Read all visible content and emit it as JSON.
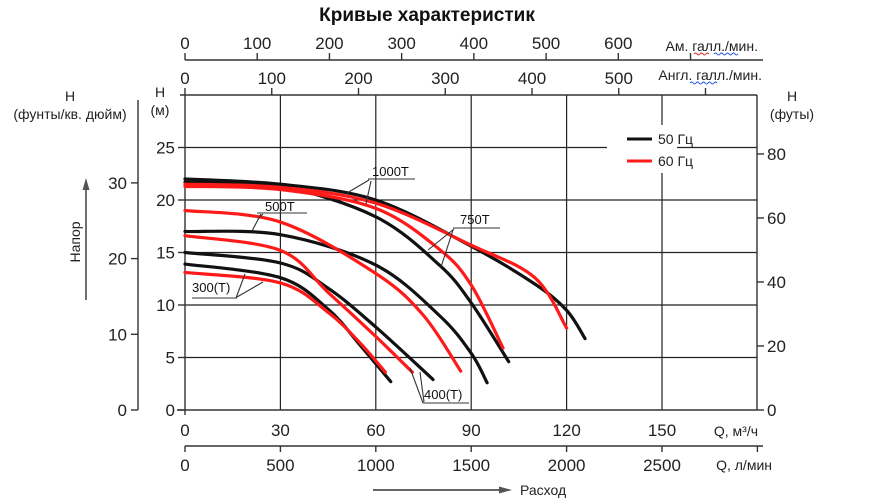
{
  "chart_data": {
    "type": "line",
    "title": "Кривые характеристик",
    "x_axes": {
      "primary": {
        "label": "Q, м³/ч",
        "ticks": [
          0,
          30,
          60,
          90,
          120,
          150
        ],
        "range": [
          0,
          180
        ]
      },
      "lpm": {
        "label": "Q, л/мин",
        "ticks": [
          0,
          500,
          1000,
          1500,
          2000,
          2500
        ]
      },
      "us_gpm": {
        "label": "Ам. галл./мин.",
        "ticks": [
          0,
          100,
          200,
          300,
          400,
          500,
          600
        ]
      },
      "uk_gpm": {
        "label": "Англ. галл./мин.",
        "ticks": [
          0,
          100,
          200,
          300,
          400,
          500
        ]
      },
      "flow_label": "Расход"
    },
    "y_axes": {
      "meters": {
        "label_top": "H",
        "label_bottom": "(м)",
        "ticks": [
          0,
          5,
          10,
          15,
          20,
          25
        ],
        "range": [
          0,
          30
        ]
      },
      "psi": {
        "label_top": "H",
        "label_bottom": "(фунты/кв. дюйм)",
        "ticks": [
          0,
          10,
          20,
          30
        ]
      },
      "feet": {
        "label_top": "H",
        "label_bottom": "(футы)",
        "ticks": [
          0,
          20,
          40,
          60,
          80
        ]
      },
      "head_label": "Напор"
    },
    "grid": true,
    "legend": {
      "placement": "top-right",
      "entries": [
        {
          "label": "50 Гц",
          "color": "#111111"
        },
        {
          "label": "60 Гц",
          "color": "#ff1a1a"
        }
      ]
    },
    "series": [
      {
        "model": "300(T)",
        "freq": "50 Гц",
        "color": "#111111",
        "points": [
          [
            0,
            13.9
          ],
          [
            30,
            12.6
          ],
          [
            45,
            9.6
          ],
          [
            55,
            6.2
          ],
          [
            64.7,
            2.7
          ]
        ]
      },
      {
        "model": "300(T)",
        "freq": "60 Гц",
        "color": "#ff1a1a",
        "points": [
          [
            0,
            13.1
          ],
          [
            30,
            12.1
          ],
          [
            45,
            9.3
          ],
          [
            55,
            6.4
          ],
          [
            63,
            3.6
          ]
        ]
      },
      {
        "model": "400(T)",
        "freq": "50 Гц",
        "color": "#111111",
        "points": [
          [
            0,
            15.0
          ],
          [
            30,
            14.0
          ],
          [
            45,
            11.6
          ],
          [
            60,
            7.9
          ],
          [
            78,
            2.9
          ]
        ]
      },
      {
        "model": "400(T)",
        "freq": "60 Гц",
        "color": "#ff1a1a",
        "points": [
          [
            0,
            16.6
          ],
          [
            30,
            15.2
          ],
          [
            45,
            11.2
          ],
          [
            60,
            7.0
          ],
          [
            71.5,
            3.6
          ]
        ]
      },
      {
        "model": "500T",
        "freq": "50 Гц",
        "color": "#111111",
        "points": [
          [
            0,
            17.0
          ],
          [
            30,
            16.7
          ],
          [
            60,
            13.8
          ],
          [
            80,
            9.0
          ],
          [
            90,
            5.4
          ],
          [
            95,
            2.6
          ]
        ]
      },
      {
        "model": "500T",
        "freq": "60 Гц",
        "color": "#ff1a1a",
        "points": [
          [
            0,
            19.0
          ],
          [
            30,
            17.9
          ],
          [
            60,
            13.0
          ],
          [
            75,
            9.0
          ],
          [
            86.7,
            3.7
          ]
        ]
      },
      {
        "model": "750T",
        "freq": "50 Гц",
        "color": "#111111",
        "points": [
          [
            0,
            21.7
          ],
          [
            30,
            21.3
          ],
          [
            60,
            18.4
          ],
          [
            80,
            13.8
          ],
          [
            90,
            10.2
          ],
          [
            101.8,
            4.6
          ]
        ]
      },
      {
        "model": "750T",
        "freq": "60 Гц",
        "color": "#ff1a1a",
        "points": [
          [
            0,
            21.3
          ],
          [
            30,
            21.0
          ],
          [
            60,
            19.2
          ],
          [
            80,
            15.3
          ],
          [
            90,
            11.9
          ],
          [
            100,
            5.9
          ]
        ]
      },
      {
        "model": "1000T",
        "freq": "50 Гц",
        "color": "#111111",
        "points": [
          [
            0,
            22.0
          ],
          [
            30,
            21.5
          ],
          [
            60,
            20.0
          ],
          [
            90,
            15.6
          ],
          [
            110,
            12.0
          ],
          [
            120,
            9.5
          ],
          [
            125.8,
            6.8
          ]
        ]
      },
      {
        "model": "1000T",
        "freq": "60 Гц",
        "color": "#ff1a1a",
        "points": [
          [
            0,
            21.5
          ],
          [
            30,
            21.2
          ],
          [
            60,
            19.7
          ],
          [
            90,
            15.7
          ],
          [
            110,
            12.6
          ],
          [
            120,
            7.8
          ]
        ]
      }
    ],
    "annotations": [
      "1000T",
      "500T",
      "750T",
      "300(T)",
      "400(T)"
    ]
  }
}
